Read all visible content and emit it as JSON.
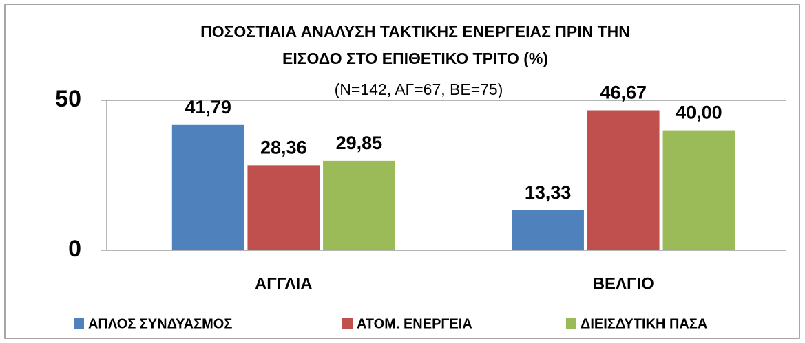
{
  "chart_data": {
    "type": "bar",
    "title": [
      "ΠΟΣΟΣΤΙΑΙΑ ΑΝΑΛΥΣΗ ΤΑΚΤΙΚΗΣ ΕΝΕΡΓΕΙΑΣ ΠΡΙΝ ΤΗΝ",
      "ΕΙΣΟΔΟ ΣΤΟ ΕΠΙΘΕΤΙΚΟ ΤΡΙΤΟ (%)"
    ],
    "subtitle": "(Ν=142, ΑΓ=67, ΒΕ=75)",
    "categories": [
      "ΑΓΓΛΙΑ",
      "ΒΕΛΓΙΟ"
    ],
    "series": [
      {
        "name": "ΑΠΛΟΣ ΣΥΝΔΥΑΣΜΟΣ",
        "color": "#4f81bd",
        "values": [
          41.79,
          13.33
        ],
        "value_labels": [
          "41,79",
          "13,33"
        ]
      },
      {
        "name": "ΑΤΟΜ. ΕΝΕΡΓΕΙΑ",
        "color": "#c0504d",
        "values": [
          28.36,
          46.67
        ],
        "value_labels": [
          "28,36",
          "46,67"
        ]
      },
      {
        "name": "ΔΙΕΙΣΔΥΤΙΚΗ ΠΑΣΑ",
        "color": "#9bbb59",
        "values": [
          29.85,
          40.0
        ],
        "value_labels": [
          "29,85",
          "40,00"
        ]
      }
    ],
    "ylim": [
      0,
      50
    ],
    "yticks": [
      0,
      50
    ],
    "grid": true,
    "legend": "bottom"
  }
}
